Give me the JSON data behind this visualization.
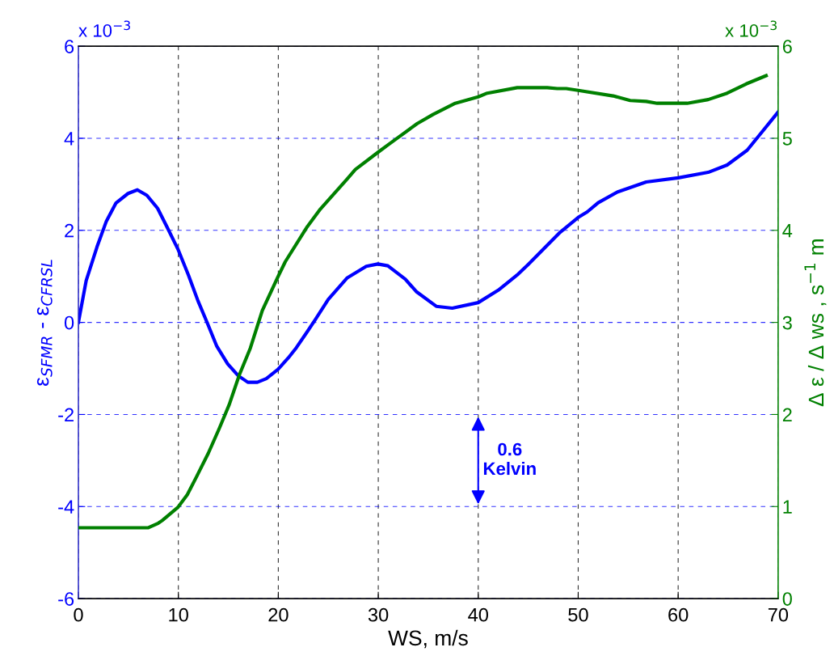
{
  "chart_data": {
    "type": "line",
    "xlabel": "WS, m/s",
    "ylabel": "ε$_{SFMR}$ - ε$_{CFRSL}$",
    "y2label": "Δ ε / Δ ws , s$^{−1}$ m",
    "xlim": [
      0,
      70
    ],
    "xticks": [
      0,
      10,
      20,
      30,
      40,
      50,
      60,
      70
    ],
    "ylim": [
      -6,
      6
    ],
    "yticks": [
      -6,
      -4,
      -2,
      0,
      2,
      4,
      6
    ],
    "y2lim": [
      0,
      6
    ],
    "y2ticks": [
      0,
      1,
      2,
      3,
      4,
      5,
      6
    ],
    "grid": true,
    "line_style": "solid",
    "series": [
      {
        "color": "#0000ff",
        "x": [
          0,
          0.78,
          1.86,
          2.8,
          3.75,
          4.96,
          5.9,
          6.85,
          7.92,
          8.87,
          9.94,
          11.02,
          11.96,
          12.91,
          13.85,
          14.93,
          16.0,
          16.95,
          17.9,
          18.8,
          19.97,
          21.0,
          21.8,
          22.9,
          23.7,
          25.0,
          26.9,
          28.8,
          29.96,
          30.96,
          32.7,
          33.8,
          35.8,
          37.4,
          40.0,
          42.0,
          44.0,
          45.0,
          46.6,
          48.2,
          50.0,
          50.9,
          52.0,
          53.9,
          56.8,
          60.0,
          63.0,
          64.9,
          66.9,
          68.1,
          70.0
        ],
        "values": [
          0,
          0.91,
          1.64,
          2.2,
          2.59,
          2.8,
          2.88,
          2.76,
          2.48,
          2.07,
          1.6,
          1.02,
          0.47,
          -0.02,
          -0.52,
          -0.9,
          -1.16,
          -1.3,
          -1.3,
          -1.22,
          -1.02,
          -0.77,
          -0.55,
          -0.2,
          0.06,
          0.5,
          0.97,
          1.22,
          1.27,
          1.23,
          0.94,
          0.67,
          0.35,
          0.31,
          0.43,
          0.7,
          1.05,
          1.26,
          1.61,
          1.96,
          2.28,
          2.4,
          2.6,
          2.83,
          3.05,
          3.14,
          3.26,
          3.42,
          3.74,
          4.06,
          4.57
        ]
      },
      {
        "color": "#008000",
        "axis": "y2",
        "x": [
          0,
          7,
          8,
          8.4,
          9.94,
          10.9,
          11.8,
          13.0,
          14.1,
          15.1,
          16.1,
          17.2,
          18.4,
          19.9,
          20.7,
          22.9,
          24.2,
          26.9,
          27.7,
          30.0,
          31.0,
          32.0,
          33.9,
          35.5,
          37.7,
          40.0,
          40.9,
          43.9,
          46.9,
          47.9,
          48.8,
          50.0,
          53.5,
          55.2,
          56.8,
          57.9,
          60.9,
          63.0,
          64.9,
          66.8,
          68.8
        ],
        "values": [
          0.77,
          0.77,
          0.82,
          0.85,
          0.99,
          1.13,
          1.32,
          1.58,
          1.85,
          2.11,
          2.43,
          2.72,
          3.13,
          3.48,
          3.66,
          4.04,
          4.23,
          4.56,
          4.66,
          4.85,
          4.93,
          5.01,
          5.16,
          5.26,
          5.38,
          5.45,
          5.49,
          5.55,
          5.55,
          5.54,
          5.54,
          5.52,
          5.46,
          5.41,
          5.4,
          5.38,
          5.38,
          5.42,
          5.49,
          5.59,
          5.68
        ]
      }
    ],
    "annotations": [
      "x 10$^{−3}$",
      "x 10$^{−3}$",
      "0.6\nKelvin"
    ]
  }
}
